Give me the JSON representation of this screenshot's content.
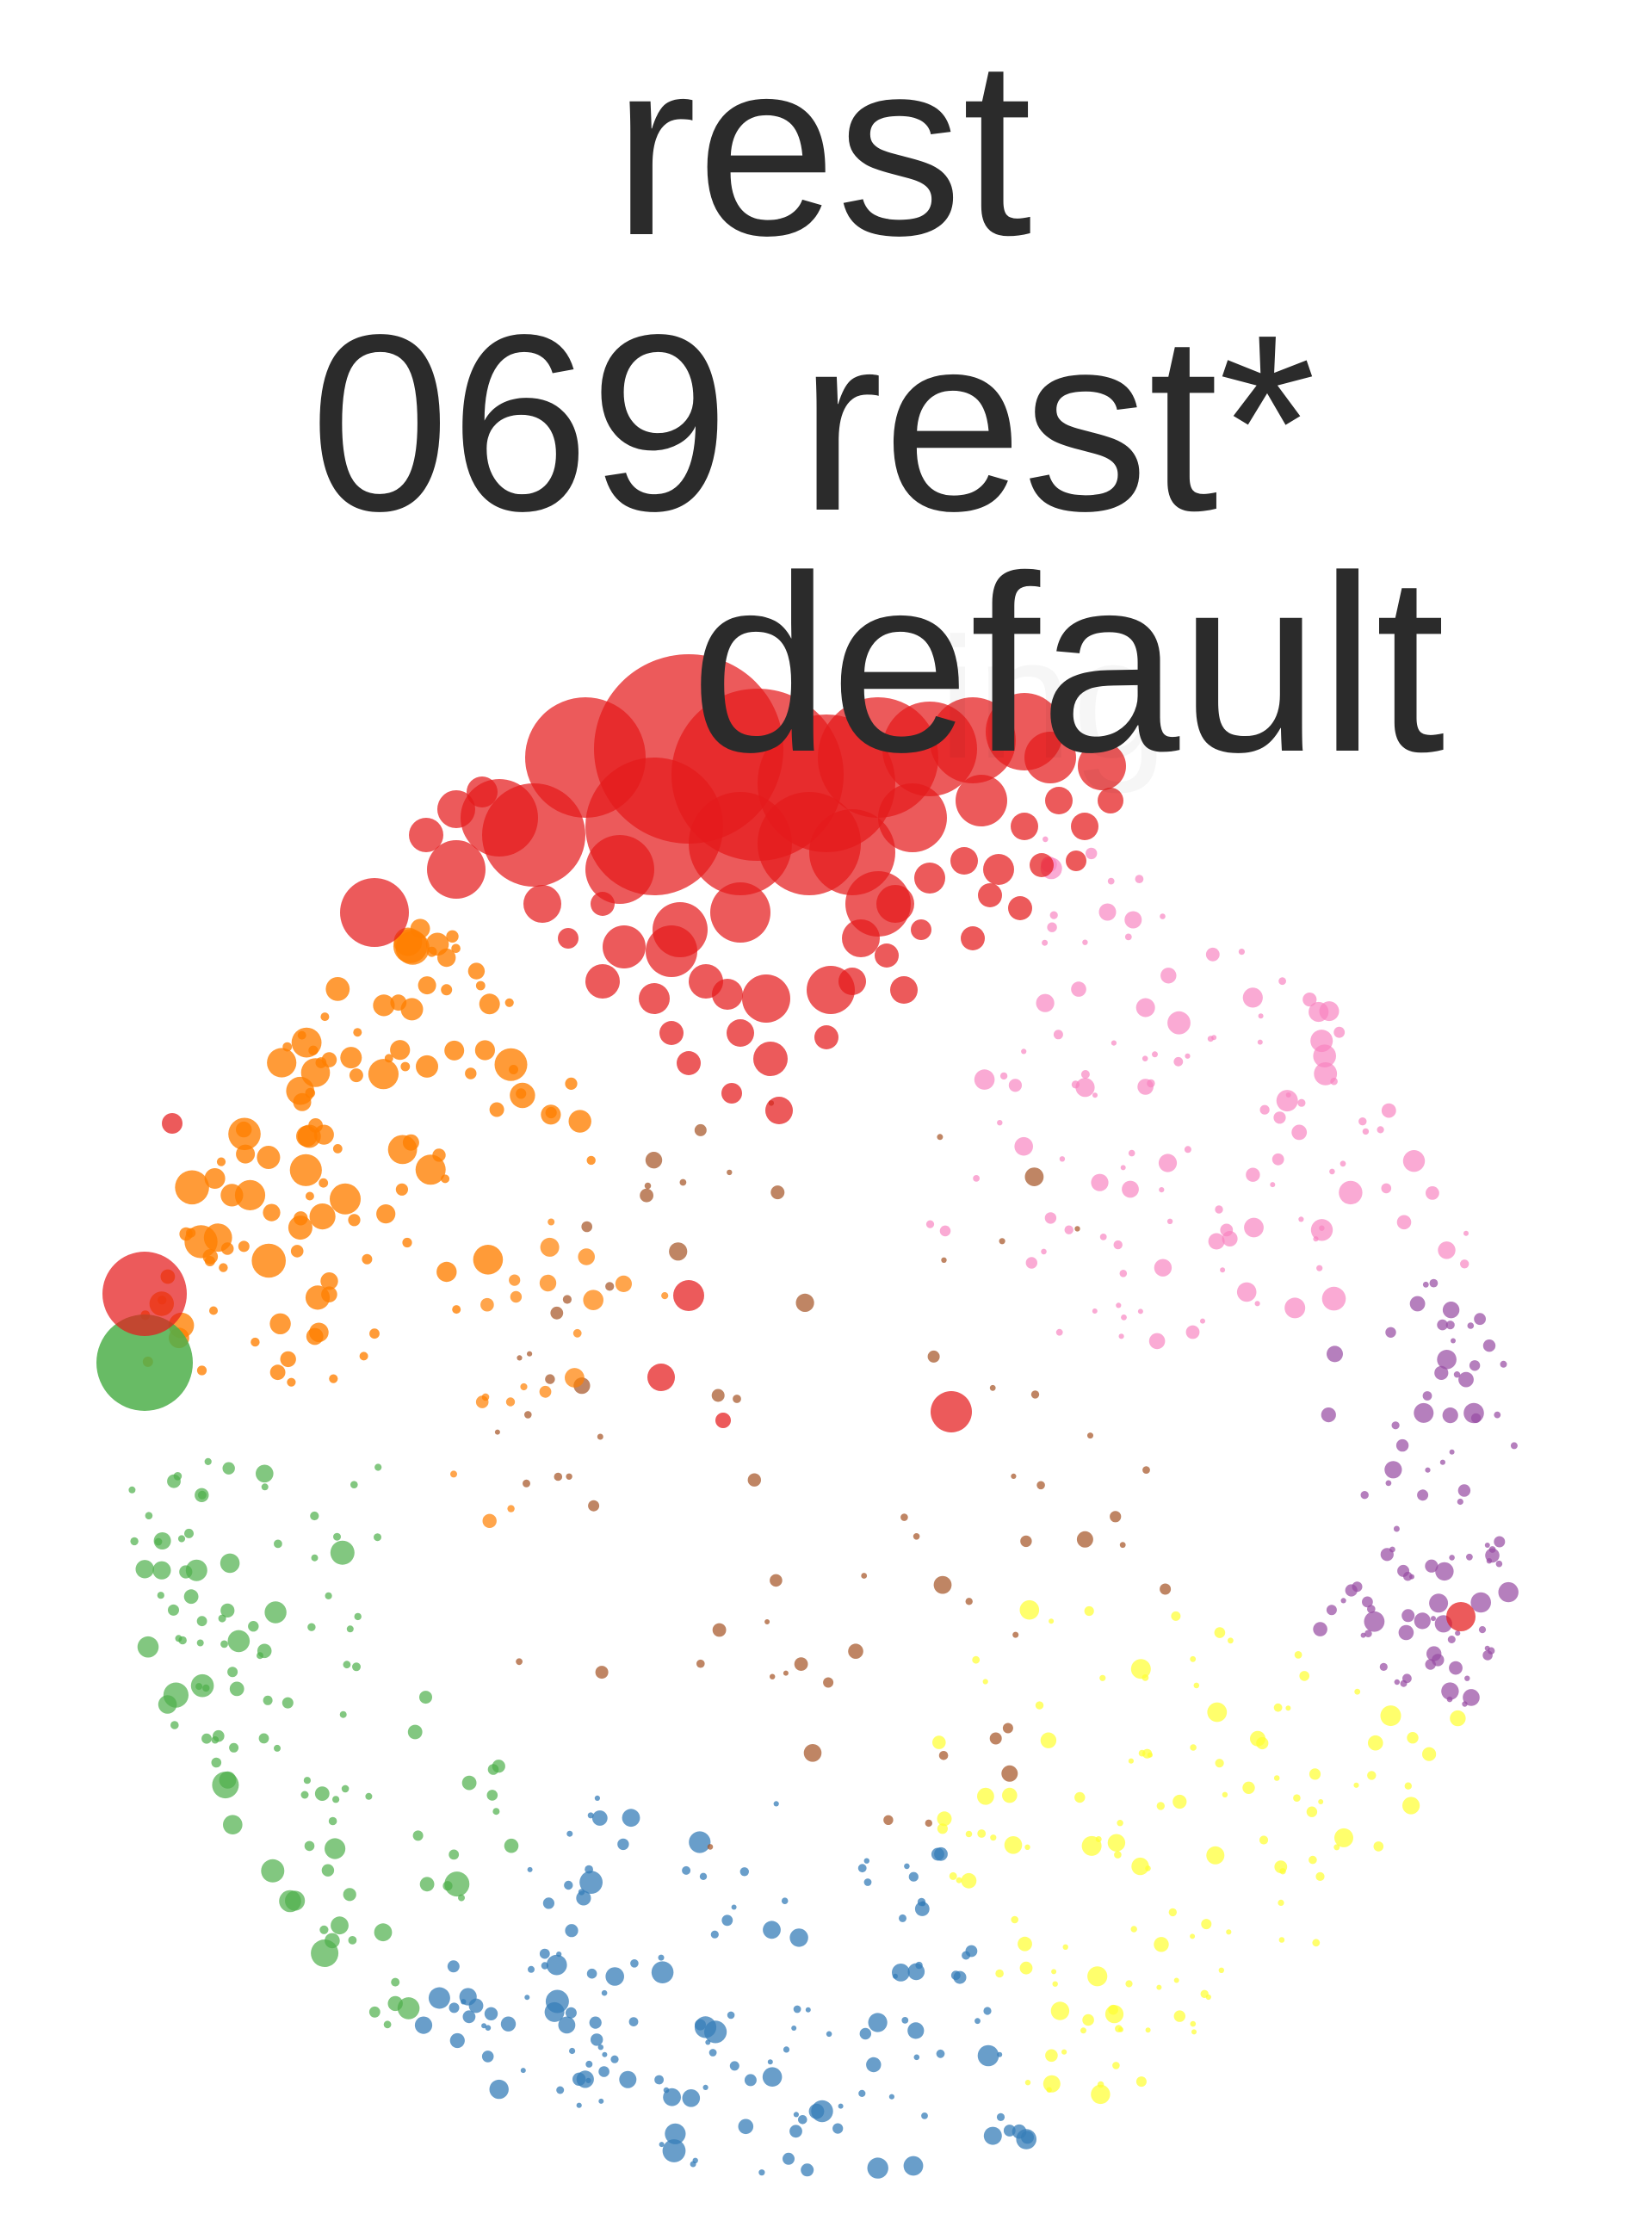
{
  "labels": {
    "line1": "rest",
    "line2": "069 rest*",
    "line3": "default",
    "ghost": "ing"
  },
  "palette": {
    "red": "#e41a1c",
    "orange": "#ff7f00",
    "green": "#4daf4a",
    "blue": "#377eb8",
    "yellow": "#ffff33",
    "pink": "#f781bf",
    "purple": "#984ea3",
    "brown": "#a65628"
  }
}
